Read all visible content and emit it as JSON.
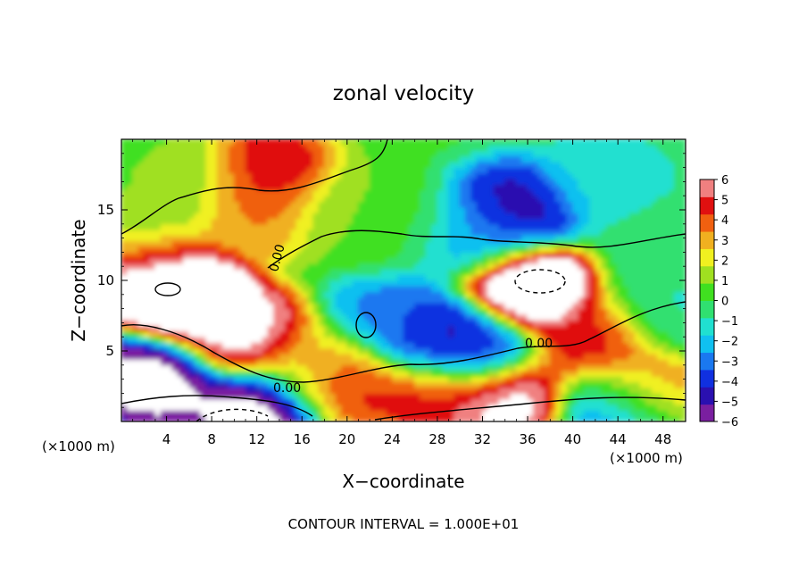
{
  "chart_data": {
    "type": "heatmap",
    "title": "zonal velocity",
    "xlabel": "X−coordinate",
    "ylabel": "Z−coordinate",
    "x_unit_label_left": "(×1000 m)",
    "x_unit_label_right": "(×1000 m)",
    "footer": "CONTOUR INTERVAL = 1.000E+01",
    "xlim": [
      0,
      50
    ],
    "ylim": [
      0,
      20
    ],
    "x_ticks": [
      4,
      8,
      12,
      16,
      20,
      24,
      28,
      32,
      36,
      40,
      44,
      48
    ],
    "x_tick_labels": [
      "4",
      "8",
      "12",
      "16",
      "20",
      "24",
      "28",
      "32",
      "36",
      "40",
      "44",
      "48"
    ],
    "y_ticks": [
      5,
      10,
      15
    ],
    "y_tick_labels": [
      "5",
      "10",
      "15"
    ],
    "colorbar": {
      "min": -6,
      "max": 6,
      "ticks": [
        6,
        5,
        4,
        3,
        2,
        1,
        0,
        -1,
        -2,
        -3,
        -4,
        -5,
        -6
      ],
      "tick_labels": [
        "6",
        "5",
        "4",
        "3",
        "2",
        "1",
        "0",
        "−1",
        "−2",
        "−3",
        "−4",
        "−5",
        "−6"
      ],
      "colors": [
        "#7a1fa0",
        "#2a10b0",
        "#1030e0",
        "#1a78f0",
        "#10c0f0",
        "#20e0d0",
        "#30e070",
        "#40e020",
        "#a0e020",
        "#f0f020",
        "#f0b020",
        "#f06010",
        "#e01010",
        "#f08080"
      ],
      "saturated_color": "#ffffff"
    },
    "contour_labels": [
      {
        "x": 15.5,
        "z": 11.5,
        "text": "0.00"
      },
      {
        "x": 37.5,
        "z": 5.8,
        "text": "0.00"
      },
      {
        "x": 14.8,
        "z": 2.5,
        "text": "0.00"
      }
    ],
    "field_features": [
      {
        "x": 13,
        "z": 17.5,
        "value": 5.5
      },
      {
        "x": 12,
        "z": 15,
        "value": 3.5
      },
      {
        "x": 6,
        "z": 17,
        "value": 1
      },
      {
        "x": 35,
        "z": 15,
        "value": -5
      },
      {
        "x": 31,
        "z": 13,
        "value": -2.5
      },
      {
        "x": 43,
        "z": 17,
        "value": -1.5
      },
      {
        "x": 25,
        "z": 14,
        "value": 0.3
      },
      {
        "x": 20,
        "z": 15,
        "value": 1
      },
      {
        "x": 48,
        "z": 13,
        "value": -0.5
      },
      {
        "x": 6,
        "z": 8.5,
        "value": 9
      },
      {
        "x": 3,
        "z": 10.5,
        "value": 8
      },
      {
        "x": 11,
        "z": 6,
        "value": 7
      },
      {
        "x": 36,
        "z": 9.5,
        "value": 9
      },
      {
        "x": 3,
        "z": 3,
        "value": -7
      },
      {
        "x": 12,
        "z": 1,
        "value": -7
      },
      {
        "x": 28,
        "z": 6,
        "value": -5
      },
      {
        "x": 31,
        "z": 5,
        "value": -4.5
      },
      {
        "x": 24,
        "z": 7,
        "value": -3
      },
      {
        "x": 34,
        "z": 1.5,
        "value": 7
      },
      {
        "x": 28,
        "z": 2,
        "value": 5
      },
      {
        "x": 20,
        "z": 3,
        "value": 5
      },
      {
        "x": 42,
        "z": 6,
        "value": 5
      },
      {
        "x": 46,
        "z": 2,
        "value": 4
      },
      {
        "x": 44,
        "z": 0.7,
        "value": -4
      },
      {
        "x": 48,
        "z": 8,
        "value": -1
      },
      {
        "x": 17,
        "z": 4,
        "value": 2
      },
      {
        "x": 2,
        "z": 13,
        "value": 1
      }
    ],
    "grid": false,
    "legend": "colorbar-right"
  }
}
